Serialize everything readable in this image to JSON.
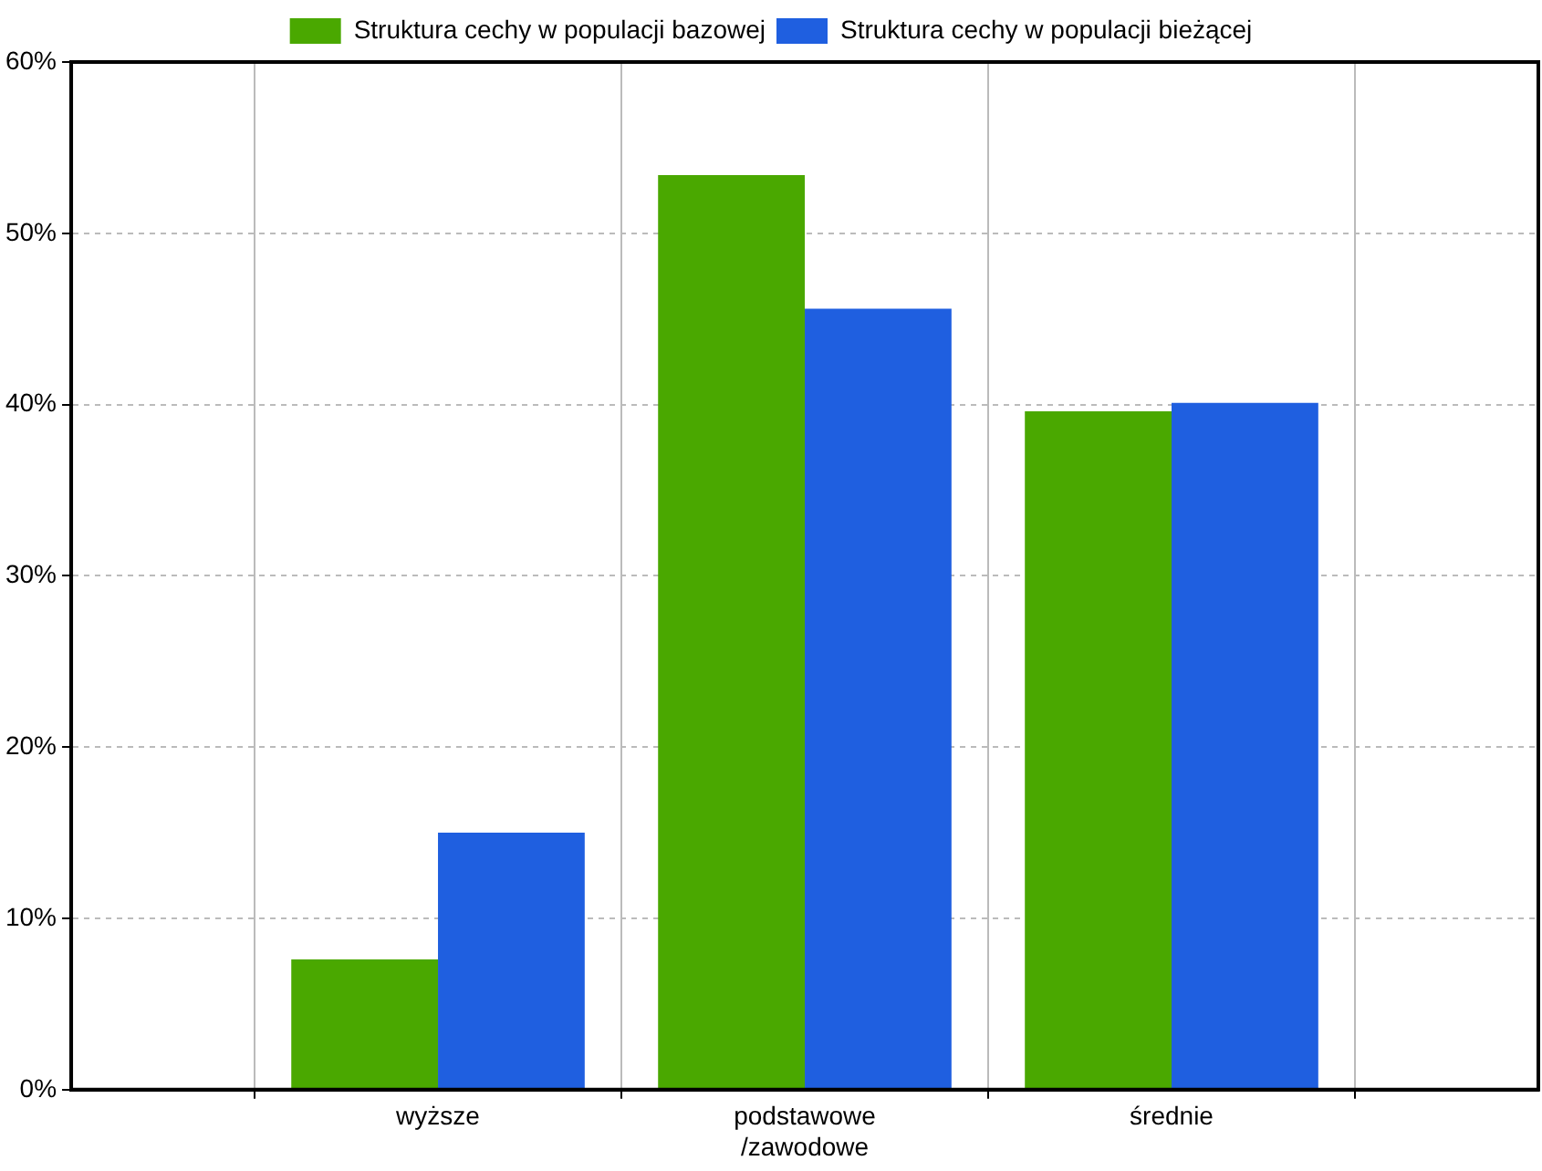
{
  "chart_data": {
    "type": "bar",
    "categories": [
      "wyższe",
      "podstawowe /zawodowe",
      "średnie"
    ],
    "series": [
      {
        "name": "Struktura cechy w populacji bazowej",
        "color": "#4aa800",
        "values": [
          7.6,
          53.4,
          39.6
        ]
      },
      {
        "name": "Struktura cechy w populacji bieżącej",
        "color": "#1f5fe0",
        "values": [
          15.0,
          45.6,
          40.1
        ]
      }
    ],
    "ylim": [
      0,
      60
    ],
    "yticks": [
      {
        "value": 0,
        "label": "0%"
      },
      {
        "value": 10,
        "label": "10%"
      },
      {
        "value": 20,
        "label": "20%"
      },
      {
        "value": 30,
        "label": "30%"
      },
      {
        "value": 40,
        "label": "40%"
      },
      {
        "value": 50,
        "label": "50%"
      },
      {
        "value": 60,
        "label": "60%"
      }
    ],
    "grid": true,
    "legend": "top"
  }
}
